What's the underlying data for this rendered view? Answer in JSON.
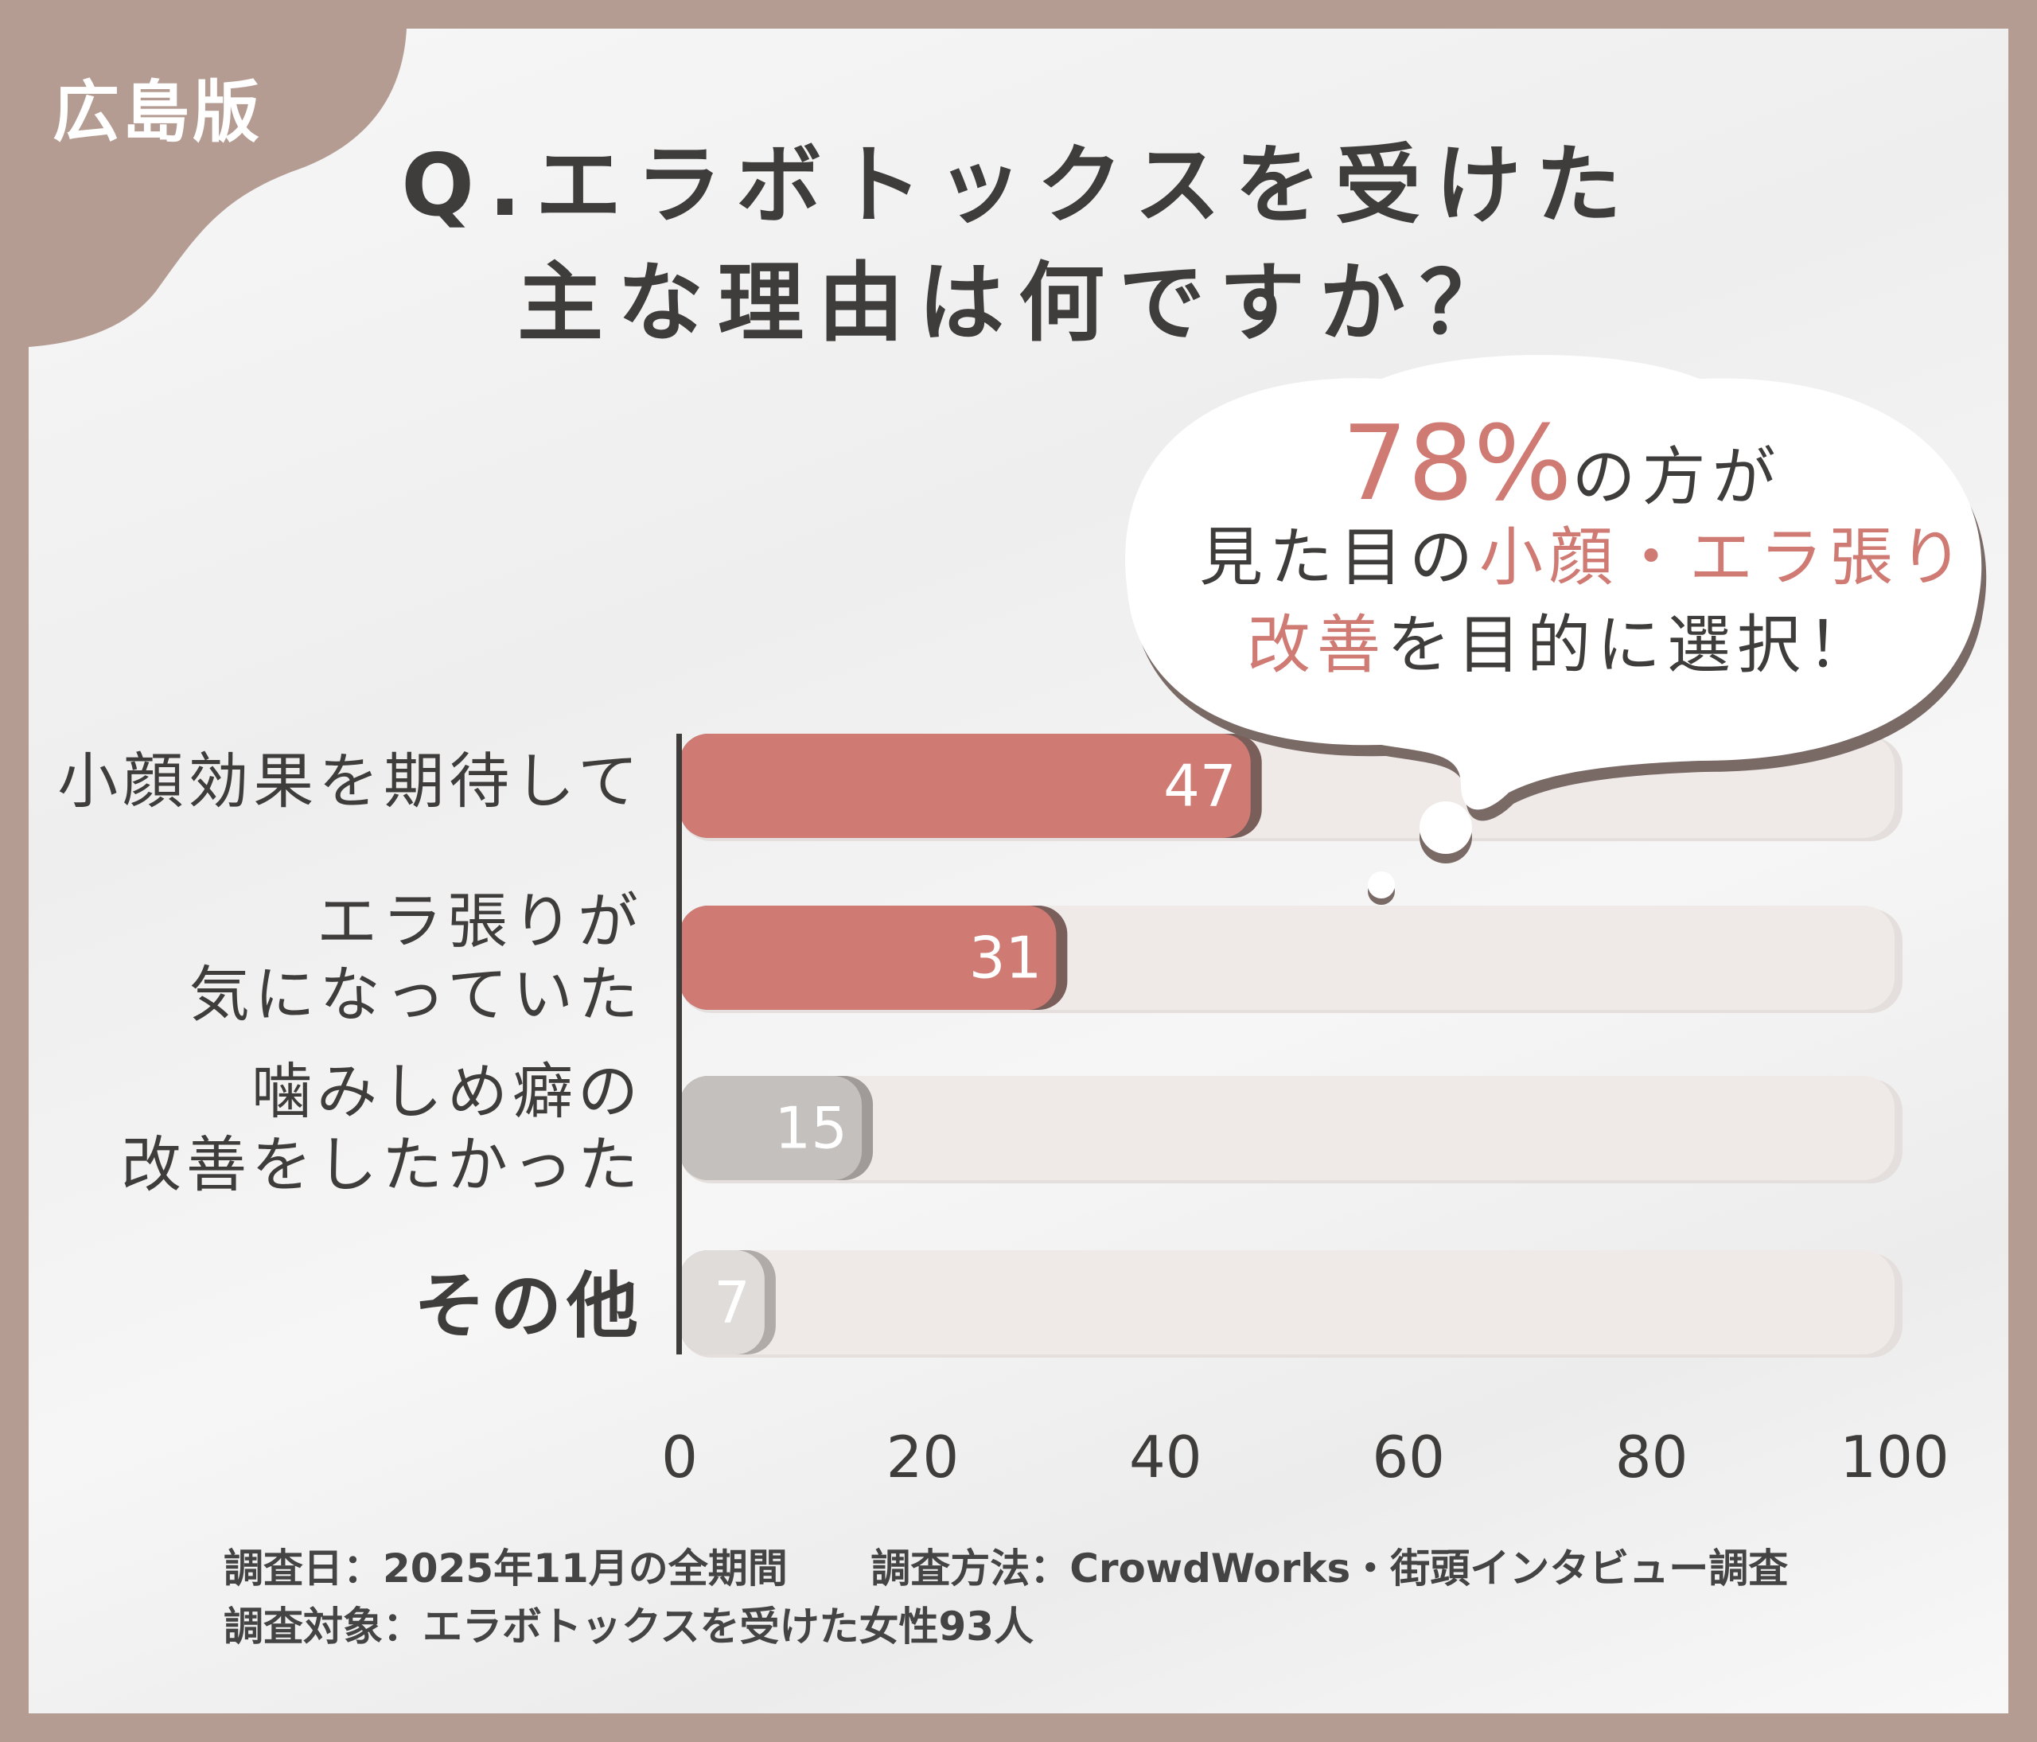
{
  "region_label": "広島版",
  "title": [
    "Q.エラボトックスを受けた",
    "主な理由は何ですか？"
  ],
  "callout": {
    "percent": "78%",
    "line1_rest": "の方が",
    "line2": [
      "見た目の",
      "小顔・エラ張り"
    ],
    "line3": [
      "改善",
      "を目的に選択！"
    ]
  },
  "colors": {
    "frame": "#b59c93",
    "highlight": "#d07a74",
    "gray": "#c4c0bd",
    "light": "#e0dcda",
    "track": "#efeae8"
  },
  "chart_data": {
    "type": "bar",
    "orientation": "horizontal",
    "categories": [
      [
        "小顔効果を期待して"
      ],
      [
        "エラ張りが",
        "気になっていた"
      ],
      [
        "噛みしめ癖の",
        "改善をしたかった"
      ],
      [
        "その他"
      ]
    ],
    "values": [
      47,
      31,
      15,
      7
    ],
    "value_labels": [
      "47",
      "31",
      "15",
      "7"
    ],
    "xlim": [
      0,
      100
    ],
    "xticks": [
      "0",
      "20",
      "40",
      "60",
      "80",
      "100"
    ],
    "grid": false
  },
  "footer": {
    "date": "調査日：2025年11月の全期間",
    "method": "調査方法：CrowdWorks・街頭インタビュー調査",
    "target": "調査対象：エラボトックスを受けた女性93人"
  }
}
